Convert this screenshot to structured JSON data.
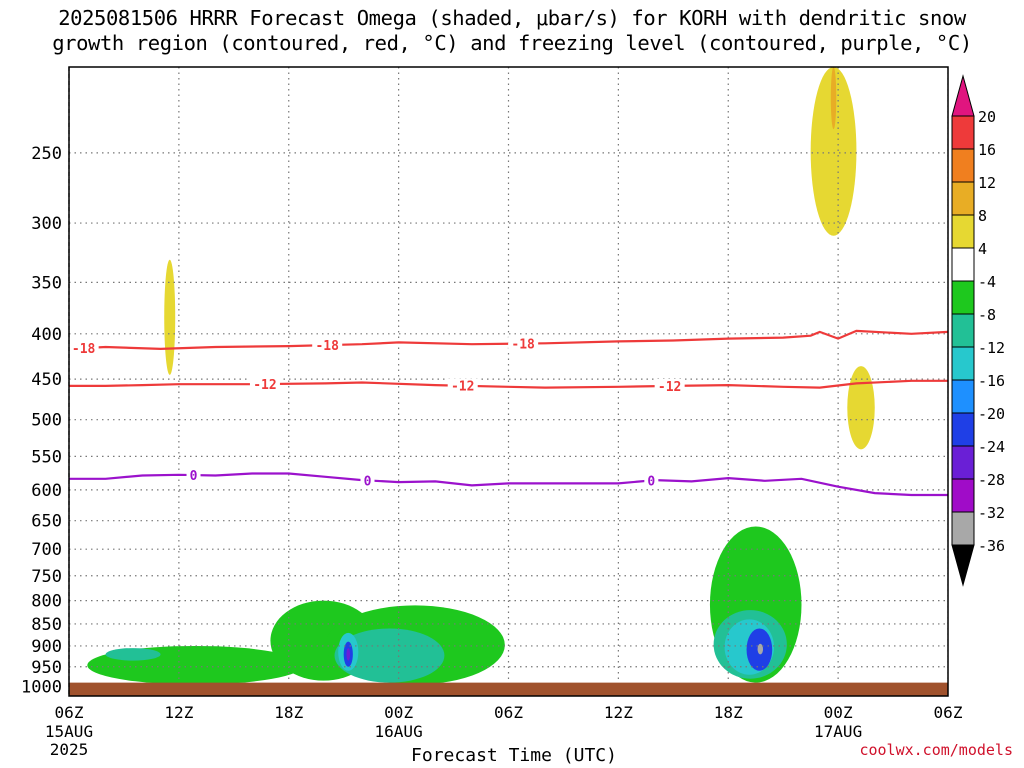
{
  "title": {
    "line1": "2025081506 HRRR Forecast Omega (shaded, μbar/s) for KORH with dendritic snow",
    "line2": "growth region (contoured, red, °C) and freezing level (contoured, purple, °C)"
  },
  "credit": "coolwx.com/models",
  "chart_data": {
    "type": "contour",
    "xlabel": "Forecast Time (UTC)",
    "x_ticks": [
      {
        "label": "06Z",
        "date": "15AUG",
        "year": "2025"
      },
      {
        "label": "12Z"
      },
      {
        "label": "18Z"
      },
      {
        "label": "00Z",
        "date": "16AUG"
      },
      {
        "label": "06Z"
      },
      {
        "label": "12Z"
      },
      {
        "label": "18Z"
      },
      {
        "label": "00Z",
        "date": "17AUG"
      },
      {
        "label": "06Z"
      }
    ],
    "x_range_hours": [
      0,
      48
    ],
    "y_ticks": [
      250,
      300,
      350,
      400,
      450,
      500,
      550,
      600,
      650,
      700,
      750,
      800,
      850,
      900,
      950,
      1000
    ],
    "y_range_hpa": [
      200,
      1025
    ],
    "y_axis": "log-pressure, inverted",
    "grid": true,
    "colorbar": {
      "labels": [
        "20",
        "16",
        "12",
        "8",
        "4",
        "-4",
        "-8",
        "-12",
        "-16",
        "-20",
        "-24",
        "-28",
        "-32",
        "-36"
      ],
      "colors": [
        "#e0157f",
        "#ee3a3a",
        "#f07f1f",
        "#e8ad25",
        "#e6d832",
        "#ffffff",
        "#1ec81e",
        "#22c096",
        "#27c8cd",
        "#1e90ff",
        "#1f3fe6",
        "#6a1fd6",
        "#a00cc8",
        "#a8a8a8",
        "#000000"
      ]
    },
    "contours": [
      {
        "name": "-18",
        "color": "#ee3a3a",
        "points": [
          [
            0,
            416
          ],
          [
            2,
            414
          ],
          [
            5,
            416
          ],
          [
            8,
            414
          ],
          [
            12,
            413
          ],
          [
            16,
            411
          ],
          [
            18,
            409
          ],
          [
            22,
            411
          ],
          [
            26,
            410
          ],
          [
            30,
            408
          ],
          [
            33,
            407
          ],
          [
            36,
            405
          ],
          [
            39,
            404
          ],
          [
            40.5,
            402
          ],
          [
            41,
            398
          ],
          [
            42,
            405
          ],
          [
            43,
            397
          ],
          [
            46,
            400
          ],
          [
            48,
            398
          ]
        ],
        "labels": [
          [
            0.8,
            "-18"
          ],
          [
            14.1,
            "-18"
          ],
          [
            24.8,
            "-18"
          ]
        ]
      },
      {
        "name": "-12",
        "color": "#ee3a3a",
        "points": [
          [
            0,
            458
          ],
          [
            2,
            458
          ],
          [
            4,
            457
          ],
          [
            6,
            456
          ],
          [
            10,
            456
          ],
          [
            14,
            455
          ],
          [
            16,
            454
          ],
          [
            20,
            457
          ],
          [
            24,
            459
          ],
          [
            26,
            460
          ],
          [
            30,
            459
          ],
          [
            33,
            458
          ],
          [
            36,
            457
          ],
          [
            39,
            459
          ],
          [
            41,
            460
          ],
          [
            43,
            455
          ],
          [
            46,
            452
          ],
          [
            48,
            452
          ]
        ],
        "labels": [
          [
            10.7,
            "-12"
          ],
          [
            21.5,
            "-12"
          ],
          [
            32.8,
            "-12"
          ]
        ]
      },
      {
        "name": "0",
        "color": "#9b12cc",
        "points": [
          [
            0,
            583
          ],
          [
            2,
            583
          ],
          [
            4,
            578
          ],
          [
            6,
            577
          ],
          [
            8,
            578
          ],
          [
            10,
            575
          ],
          [
            12,
            575
          ],
          [
            14,
            580
          ],
          [
            16,
            585
          ],
          [
            18,
            588
          ],
          [
            20,
            587
          ],
          [
            22,
            593
          ],
          [
            24,
            590
          ],
          [
            26,
            590
          ],
          [
            30,
            590
          ],
          [
            32,
            585
          ],
          [
            34,
            587
          ],
          [
            36,
            582
          ],
          [
            38,
            586
          ],
          [
            40,
            583
          ],
          [
            42,
            595
          ],
          [
            44,
            605
          ],
          [
            46,
            608
          ],
          [
            48,
            608
          ]
        ],
        "labels": [
          [
            6.8,
            "0"
          ],
          [
            16.3,
            "0"
          ],
          [
            31.8,
            "0"
          ]
        ]
      }
    ],
    "omega_features": [
      {
        "level": "-8",
        "color": "#1ec81e",
        "bounds_hours": [
          1,
          12.8
        ],
        "bounds_hpa": [
          900,
          995
        ]
      },
      {
        "level": "-8",
        "color": "#1ec81e",
        "bounds_hours": [
          11,
          16.8
        ],
        "bounds_hpa": [
          800,
          985
        ]
      },
      {
        "level": "-12",
        "color": "#22c096",
        "bounds_hours": [
          2,
          5
        ],
        "bounds_hpa": [
          905,
          935
        ]
      },
      {
        "level": "-8",
        "color": "#1ec81e",
        "bounds_hours": [
          14,
          23.8
        ],
        "bounds_hpa": [
          810,
          995
        ]
      },
      {
        "level": "-12",
        "color": "#22c096",
        "bounds_hours": [
          14.5,
          20.5
        ],
        "bounds_hpa": [
          860,
          990
        ]
      },
      {
        "level": "-16",
        "color": "#27c8cd",
        "bounds_hours": [
          14.7,
          15.8
        ],
        "bounds_hpa": [
          870,
          960
        ]
      },
      {
        "level": "-24",
        "color": "#1f3fe6",
        "bounds_hours": [
          15,
          15.5
        ],
        "bounds_hpa": [
          890,
          950
        ]
      },
      {
        "level": "-28",
        "color": "#6a1fd6",
        "bounds_hours": [
          15.15,
          15.35
        ],
        "bounds_hpa": [
          905,
          935
        ]
      },
      {
        "level": "-8",
        "color": "#1ec81e",
        "bounds_hours": [
          35,
          40
        ],
        "bounds_hpa": [
          660,
          990
        ]
      },
      {
        "level": "-12",
        "color": "#22c096",
        "bounds_hours": [
          35.2,
          39.2
        ],
        "bounds_hpa": [
          820,
          980
        ]
      },
      {
        "level": "-16",
        "color": "#27c8cd",
        "bounds_hours": [
          35.8,
          38.5
        ],
        "bounds_hpa": [
          840,
          970
        ]
      },
      {
        "level": "-24",
        "color": "#1f3fe6",
        "bounds_hours": [
          37,
          38.4
        ],
        "bounds_hpa": [
          860,
          960
        ]
      },
      {
        "level": "-32",
        "color": "#a8a8a8",
        "bounds_hours": [
          37.6,
          37.9
        ],
        "bounds_hpa": [
          895,
          920
        ]
      },
      {
        "level": "8",
        "color": "#e6d832",
        "bounds_hours": [
          40.5,
          43
        ],
        "bounds_hpa": [
          200,
          310
        ]
      },
      {
        "level": "8",
        "color": "#e8ad25",
        "bounds_hours": [
          41.6,
          41.9
        ],
        "bounds_hpa": [
          200,
          235
        ]
      },
      {
        "level": "4",
        "color": "#e6d832",
        "bounds_hours": [
          42.5,
          44
        ],
        "bounds_hpa": [
          435,
          540
        ]
      },
      {
        "level": "4",
        "color": "#e6d832",
        "bounds_hours": [
          5.2,
          5.8
        ],
        "bounds_hpa": [
          330,
          445
        ]
      }
    ]
  }
}
